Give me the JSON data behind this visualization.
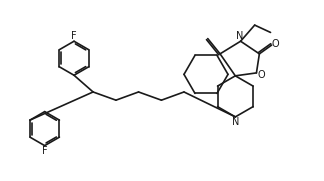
{
  "bg_color": "#ffffff",
  "line_color": "#1a1a1a",
  "line_width": 1.2,
  "font_size": 7.0,
  "fig_width": 3.24,
  "fig_height": 1.81,
  "xlim": [
    0,
    11
  ],
  "ylim": [
    0,
    6
  ]
}
